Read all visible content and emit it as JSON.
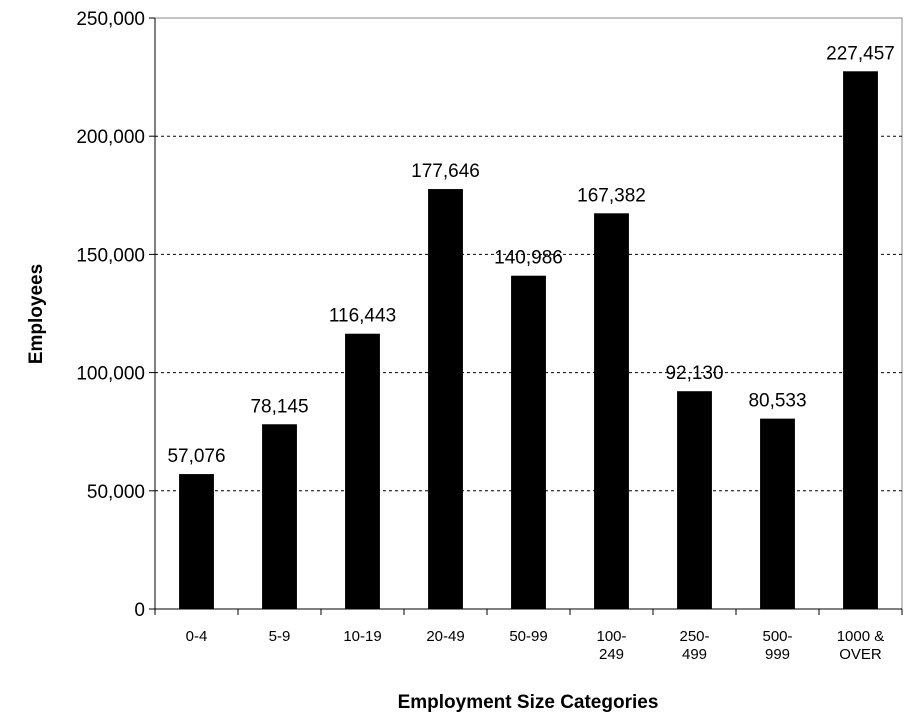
{
  "chart_data": {
    "type": "bar",
    "title": "",
    "xlabel": "Employment Size Categories",
    "ylabel": "Employees",
    "ylim": [
      0,
      250000
    ],
    "yticks": [
      0,
      50000,
      100000,
      150000,
      200000,
      250000
    ],
    "ytick_labels": [
      "0",
      "50,000",
      "100,000",
      "150,000",
      "200,000",
      "250,000"
    ],
    "grid": "horizontal dotted",
    "categories": [
      [
        "0-4"
      ],
      [
        "5-9"
      ],
      [
        "10-19"
      ],
      [
        "20-49"
      ],
      [
        "50-99"
      ],
      [
        "100-",
        "249"
      ],
      [
        "250-",
        "499"
      ],
      [
        "500-",
        "999"
      ],
      [
        "1000 &",
        "OVER"
      ]
    ],
    "values": [
      57076,
      78145,
      116443,
      177646,
      140986,
      167382,
      92130,
      80533,
      227457
    ],
    "data_labels": [
      "57,076",
      "78,145",
      "116,443",
      "177,646",
      "140,986",
      "167,382",
      "92,130",
      "80,533",
      "227,457"
    ],
    "bar_color": "#000000"
  }
}
